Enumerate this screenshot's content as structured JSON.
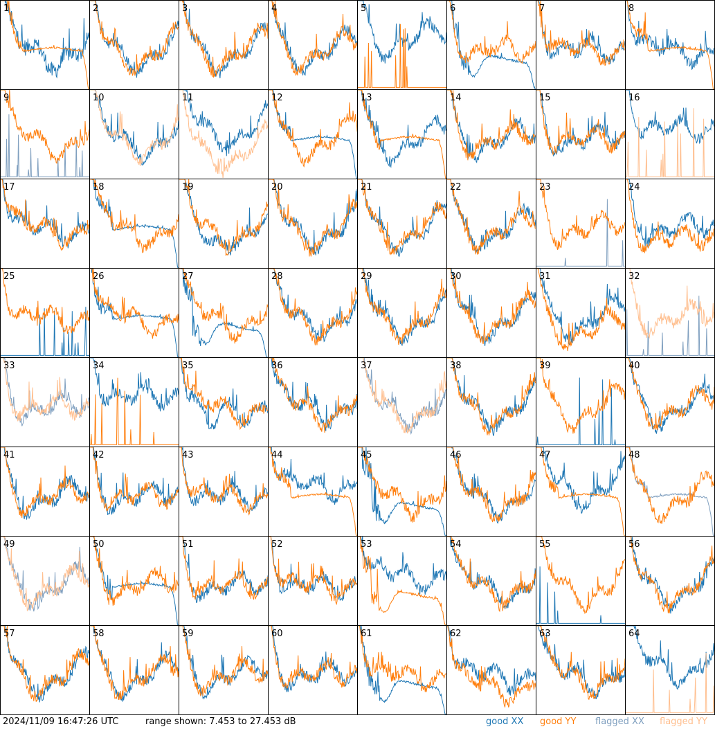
{
  "timestamp": "2024/11/09 16:47:26 UTC",
  "range_text": "range shown: 7.453 to 27.453 dB",
  "legend": [
    {
      "label": "good XX",
      "color": "#1f77b4"
    },
    {
      "label": "good YY",
      "color": "#ff7f0e"
    },
    {
      "label": "flagged XX",
      "color": "#7f9fbf"
    },
    {
      "label": "flagged YY",
      "color": "#ffbf8f"
    }
  ],
  "chart_data": {
    "type": "line",
    "layout": "8x8 small multiples",
    "ylim": [
      7.453,
      27.453
    ],
    "y_unit": "dB",
    "panels": [
      {
        "id": "1",
        "xx": "good",
        "yy": "good",
        "xx_shape": "noisy",
        "yy_shape": "drop"
      },
      {
        "id": "2",
        "xx": "good",
        "yy": "good",
        "xx_shape": "normal",
        "yy_shape": "normal"
      },
      {
        "id": "3",
        "xx": "good",
        "yy": "good",
        "xx_shape": "normal",
        "yy_shape": "normal"
      },
      {
        "id": "4",
        "xx": "good",
        "yy": "good",
        "xx_shape": "normal",
        "yy_shape": "normal"
      },
      {
        "id": "5",
        "xx": "good",
        "yy": "good",
        "xx_shape": "high",
        "yy_shape": "spikes"
      },
      {
        "id": "6",
        "xx": "good",
        "yy": "good",
        "xx_shape": "dip_drop",
        "yy_shape": "normal"
      },
      {
        "id": "7",
        "xx": "good",
        "yy": "good",
        "xx_shape": "normal",
        "yy_shape": "normal"
      },
      {
        "id": "8",
        "xx": "good",
        "yy": "good",
        "xx_shape": "normal",
        "yy_shape": "drop"
      },
      {
        "id": "9",
        "xx": "flagged",
        "yy": "good",
        "xx_shape": "spikes",
        "yy_shape": "normal"
      },
      {
        "id": "10",
        "xx": "good",
        "yy": "flagged",
        "xx_shape": "normal",
        "yy_shape": "normal"
      },
      {
        "id": "11",
        "xx": "good",
        "yy": "flagged",
        "xx_shape": "high",
        "yy_shape": "low"
      },
      {
        "id": "12",
        "xx": "good",
        "yy": "good",
        "xx_shape": "drop",
        "yy_shape": "normal"
      },
      {
        "id": "13",
        "xx": "good",
        "yy": "good",
        "xx_shape": "normal",
        "yy_shape": "drop"
      },
      {
        "id": "14",
        "xx": "good",
        "yy": "good",
        "xx_shape": "normal",
        "yy_shape": "normal"
      },
      {
        "id": "15",
        "xx": "good",
        "yy": "good",
        "xx_shape": "normal",
        "yy_shape": "normal"
      },
      {
        "id": "16",
        "xx": "good",
        "yy": "flagged",
        "xx_shape": "high",
        "yy_shape": "spikes"
      },
      {
        "id": "17",
        "xx": "good",
        "yy": "good",
        "xx_shape": "normal",
        "yy_shape": "normal"
      },
      {
        "id": "18",
        "xx": "good",
        "yy": "good",
        "xx_shape": "drop",
        "yy_shape": "normal"
      },
      {
        "id": "19",
        "xx": "good",
        "yy": "good",
        "xx_shape": "dip",
        "yy_shape": "normal"
      },
      {
        "id": "20",
        "xx": "good",
        "yy": "good",
        "xx_shape": "normal",
        "yy_shape": "normal"
      },
      {
        "id": "21",
        "xx": "good",
        "yy": "good",
        "xx_shape": "normal",
        "yy_shape": "normal"
      },
      {
        "id": "22",
        "xx": "good",
        "yy": "good",
        "xx_shape": "normal",
        "yy_shape": "normal"
      },
      {
        "id": "23",
        "xx": "flagged",
        "yy": "good",
        "xx_shape": "spikes",
        "yy_shape": "normal"
      },
      {
        "id": "24",
        "xx": "good",
        "yy": "good",
        "xx_shape": "normal",
        "yy_shape": "low"
      },
      {
        "id": "25",
        "xx": "good",
        "yy": "good",
        "xx_shape": "spikes",
        "yy_shape": "normal"
      },
      {
        "id": "26",
        "xx": "good",
        "yy": "good",
        "xx_shape": "drop",
        "yy_shape": "normal"
      },
      {
        "id": "27",
        "xx": "good",
        "yy": "good",
        "xx_shape": "dip_drop",
        "yy_shape": "normal"
      },
      {
        "id": "28",
        "xx": "good",
        "yy": "good",
        "xx_shape": "normal",
        "yy_shape": "normal"
      },
      {
        "id": "29",
        "xx": "good",
        "yy": "good",
        "xx_shape": "normal",
        "yy_shape": "normal"
      },
      {
        "id": "30",
        "xx": "good",
        "yy": "good",
        "xx_shape": "normal",
        "yy_shape": "normal"
      },
      {
        "id": "31",
        "xx": "good",
        "yy": "good",
        "xx_shape": "normal",
        "yy_shape": "low"
      },
      {
        "id": "32",
        "xx": "flagged",
        "yy": "flagged",
        "xx_shape": "spikes",
        "yy_shape": "normal"
      },
      {
        "id": "33",
        "xx": "flagged",
        "yy": "flagged",
        "xx_shape": "normal",
        "yy_shape": "normal"
      },
      {
        "id": "34",
        "xx": "good",
        "yy": "good",
        "xx_shape": "high",
        "yy_shape": "spikes"
      },
      {
        "id": "35",
        "xx": "good",
        "yy": "good",
        "xx_shape": "dip",
        "yy_shape": "normal"
      },
      {
        "id": "36",
        "xx": "good",
        "yy": "good",
        "xx_shape": "normal",
        "yy_shape": "normal"
      },
      {
        "id": "37",
        "xx": "flagged",
        "yy": "flagged",
        "xx_shape": "normal",
        "yy_shape": "normal"
      },
      {
        "id": "38",
        "xx": "good",
        "yy": "good",
        "xx_shape": "normal",
        "yy_shape": "normal"
      },
      {
        "id": "39",
        "xx": "good",
        "yy": "good",
        "xx_shape": "spikes",
        "yy_shape": "normal"
      },
      {
        "id": "40",
        "xx": "good",
        "yy": "good",
        "xx_shape": "normal",
        "yy_shape": "normal"
      },
      {
        "id": "41",
        "xx": "good",
        "yy": "good",
        "xx_shape": "normal",
        "yy_shape": "normal"
      },
      {
        "id": "42",
        "xx": "good",
        "yy": "good",
        "xx_shape": "normal",
        "yy_shape": "normal"
      },
      {
        "id": "43",
        "xx": "good",
        "yy": "good",
        "xx_shape": "normal",
        "yy_shape": "normal"
      },
      {
        "id": "44",
        "xx": "good",
        "yy": "good",
        "xx_shape": "high",
        "yy_shape": "drop"
      },
      {
        "id": "45",
        "xx": "good",
        "yy": "good",
        "xx_shape": "dip_drop",
        "yy_shape": "normal"
      },
      {
        "id": "46",
        "xx": "good",
        "yy": "good",
        "xx_shape": "normal",
        "yy_shape": "normal"
      },
      {
        "id": "47",
        "xx": "good",
        "yy": "good",
        "xx_shape": "high",
        "yy_shape": "drop"
      },
      {
        "id": "48",
        "xx": "flagged",
        "yy": "good",
        "xx_shape": "drop",
        "yy_shape": "normal"
      },
      {
        "id": "49",
        "xx": "flagged",
        "yy": "flagged",
        "xx_shape": "normal",
        "yy_shape": "normal"
      },
      {
        "id": "50",
        "xx": "good",
        "yy": "good",
        "xx_shape": "drop",
        "yy_shape": "normal"
      },
      {
        "id": "51",
        "xx": "good",
        "yy": "good",
        "xx_shape": "normal",
        "yy_shape": "normal"
      },
      {
        "id": "52",
        "xx": "good",
        "yy": "good",
        "xx_shape": "normal",
        "yy_shape": "normal"
      },
      {
        "id": "53",
        "xx": "good",
        "yy": "good",
        "xx_shape": "high",
        "yy_shape": "dip_drop"
      },
      {
        "id": "54",
        "xx": "good",
        "yy": "good",
        "xx_shape": "normal",
        "yy_shape": "normal"
      },
      {
        "id": "55",
        "xx": "good",
        "yy": "good",
        "xx_shape": "spikes",
        "yy_shape": "normal"
      },
      {
        "id": "56",
        "xx": "good",
        "yy": "good",
        "xx_shape": "normal",
        "yy_shape": "normal"
      },
      {
        "id": "57",
        "xx": "good",
        "yy": "good",
        "xx_shape": "normal",
        "yy_shape": "normal"
      },
      {
        "id": "58",
        "xx": "good",
        "yy": "good",
        "xx_shape": "normal",
        "yy_shape": "normal"
      },
      {
        "id": "59",
        "xx": "good",
        "yy": "good",
        "xx_shape": "normal",
        "yy_shape": "normal"
      },
      {
        "id": "60",
        "xx": "good",
        "yy": "good",
        "xx_shape": "normal",
        "yy_shape": "normal"
      },
      {
        "id": "61",
        "xx": "good",
        "yy": "good",
        "xx_shape": "dip_drop",
        "yy_shape": "normal"
      },
      {
        "id": "62",
        "xx": "good",
        "yy": "good",
        "xx_shape": "normal",
        "yy_shape": "low"
      },
      {
        "id": "63",
        "xx": "good",
        "yy": "good",
        "xx_shape": "normal",
        "yy_shape": "normal"
      },
      {
        "id": "64",
        "xx": "good",
        "yy": "flagged",
        "xx_shape": "high",
        "yy_shape": "spikes"
      }
    ]
  }
}
